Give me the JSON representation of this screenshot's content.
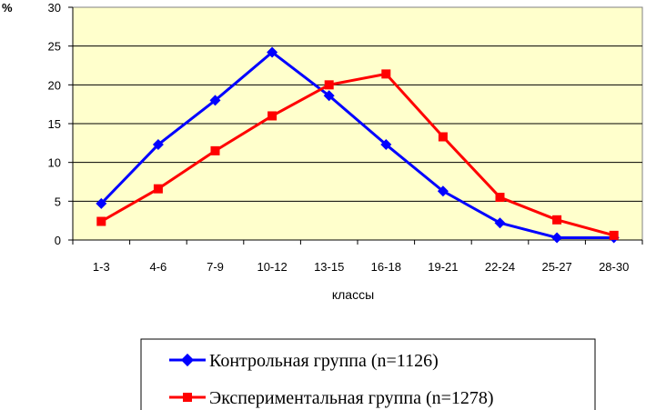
{
  "chart_data": {
    "type": "line",
    "title": "",
    "ylabel": "%",
    "xlabel": "классы",
    "categories": [
      "1-3",
      "4-6",
      "7-9",
      "10-12",
      "13-15",
      "16-18",
      "19-21",
      "22-24",
      "25-27",
      "28-30"
    ],
    "ylim": [
      0,
      30
    ],
    "yticks": [
      0,
      5,
      10,
      15,
      20,
      25,
      30
    ],
    "grid": true,
    "legend_position": "bottom",
    "plot_background": "#ffffcc",
    "series": [
      {
        "name": "Контрольная группа (n=1126)",
        "color": "#0000ff",
        "marker": "diamond",
        "values": [
          4.7,
          12.3,
          18.0,
          24.2,
          18.6,
          12.3,
          6.3,
          2.2,
          0.3,
          0.3
        ]
      },
      {
        "name": "Экспериментальная группа (n=1278)",
        "color": "#ff0000",
        "marker": "square",
        "values": [
          2.4,
          6.6,
          11.5,
          16.0,
          20.0,
          21.4,
          13.3,
          5.5,
          2.6,
          0.6
        ]
      }
    ]
  }
}
